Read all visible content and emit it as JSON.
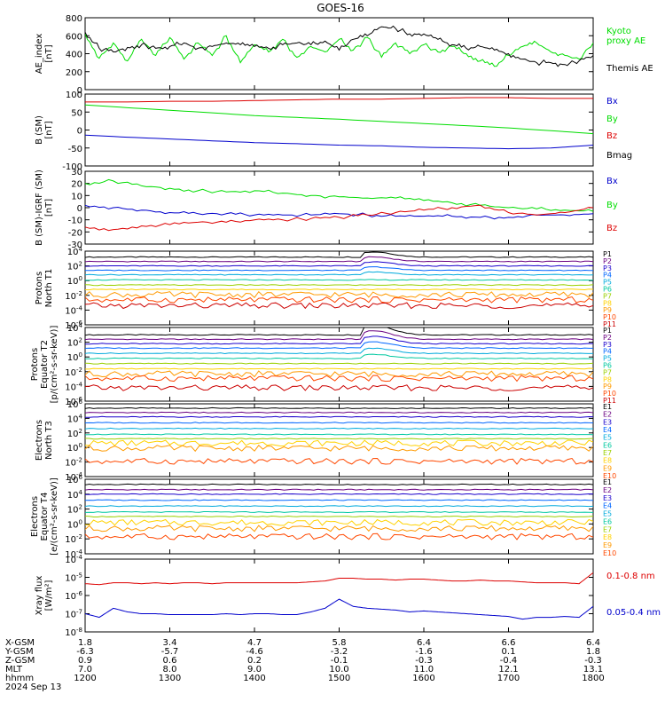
{
  "title": "GOES-16",
  "colors": {
    "black": "#000000",
    "green": "#00dd00",
    "red": "#dd0000",
    "blue": "#0000cc",
    "P": [
      "#000000",
      "#6a0080",
      "#1a00cc",
      "#0066ff",
      "#00aadd",
      "#00c8a0",
      "#9ad000",
      "#ffd200",
      "#ff9a00",
      "#ff4800",
      "#cc0000"
    ]
  },
  "xaxis": {
    "times": [
      "1200",
      "1300",
      "1400",
      "1500",
      "1600",
      "1700",
      "1800"
    ],
    "rows": [
      {
        "label": "X-GSM",
        "values": [
          "1.8",
          "3.4",
          "4.7",
          "5.8",
          "6.4",
          "6.6",
          "6.4"
        ]
      },
      {
        "label": "Y-GSM",
        "values": [
          "-6.3",
          "-5.7",
          "-4.6",
          "-3.2",
          "-1.6",
          "0.1",
          "1.8"
        ]
      },
      {
        "label": "Z-GSM",
        "values": [
          "0.9",
          "0.6",
          "0.2",
          "-0.1",
          "-0.3",
          "-0.4",
          "-0.3"
        ]
      },
      {
        "label": "MLT",
        "values": [
          "7.0",
          "8.0",
          "9.0",
          "10.0",
          "11.0",
          "12.1",
          "13.1"
        ]
      },
      {
        "label": "hhmm",
        "values": [
          "1200",
          "1300",
          "1400",
          "1500",
          "1600",
          "1700",
          "1800"
        ]
      }
    ],
    "date": "2024 Sep 13"
  },
  "chart_data": [
    {
      "type": "line",
      "id": "ae",
      "ylabel": [
        "AE_index",
        "[nT]"
      ],
      "ylim": [
        0,
        800
      ],
      "yticks": [
        "0",
        "200",
        "400",
        "600",
        "800"
      ],
      "series": [
        {
          "name": "Kyoto proxy AE",
          "label_lines": [
            "Kyoto",
            "proxy AE"
          ],
          "color": "green",
          "x": [
            1200,
            1210,
            1220,
            1230,
            1240,
            1250,
            1300,
            1310,
            1320,
            1330,
            1340,
            1350,
            1400,
            1410,
            1420,
            1430,
            1440,
            1450,
            1500,
            1510,
            1520,
            1530,
            1540,
            1550,
            1600,
            1610,
            1620,
            1630,
            1640,
            1650,
            1700,
            1710,
            1720,
            1730,
            1740,
            1750,
            1800
          ],
          "y": [
            620,
            350,
            520,
            320,
            560,
            380,
            580,
            340,
            520,
            380,
            600,
            300,
            500,
            420,
            560,
            360,
            480,
            420,
            560,
            440,
            580,
            360,
            520,
            400,
            500,
            420,
            480,
            400,
            320,
            260,
            380,
            480,
            520,
            420,
            380,
            340,
            520
          ]
        },
        {
          "name": "Themis AE",
          "label_lines": [
            "Themis AE"
          ],
          "color": "black",
          "x": [
            1200,
            1210,
            1220,
            1230,
            1240,
            1250,
            1300,
            1310,
            1320,
            1330,
            1340,
            1350,
            1400,
            1410,
            1420,
            1430,
            1440,
            1450,
            1500,
            1510,
            1520,
            1530,
            1540,
            1550,
            1600,
            1610,
            1620,
            1630,
            1640,
            1650,
            1700,
            1710,
            1720,
            1730,
            1740,
            1750,
            1800
          ],
          "y": [
            640,
            460,
            420,
            470,
            500,
            460,
            480,
            520,
            460,
            480,
            520,
            500,
            480,
            460,
            500,
            520,
            500,
            540,
            440,
            560,
            600,
            700,
            680,
            620,
            620,
            560,
            500,
            460,
            480,
            440,
            400,
            340,
            300,
            300,
            280,
            320,
            380
          ]
        }
      ]
    },
    {
      "type": "line",
      "id": "bsm",
      "ylabel": [
        "B (SM)",
        "[nT]"
      ],
      "ylim": [
        -100,
        100
      ],
      "yticks": [
        "-100",
        "-50",
        "0",
        "50",
        "100"
      ],
      "series": [
        {
          "name": "Bx",
          "color": "blue",
          "x": [
            1200,
            1230,
            1300,
            1330,
            1400,
            1430,
            1500,
            1530,
            1600,
            1630,
            1700,
            1730,
            1800
          ],
          "y": [
            -14,
            -20,
            -25,
            -30,
            -35,
            -38,
            -42,
            -44,
            -48,
            -50,
            -52,
            -50,
            -42
          ]
        },
        {
          "name": "By",
          "color": "green",
          "x": [
            1200,
            1230,
            1300,
            1330,
            1400,
            1430,
            1500,
            1530,
            1600,
            1630,
            1700,
            1730,
            1800
          ],
          "y": [
            70,
            62,
            55,
            48,
            40,
            35,
            30,
            24,
            18,
            12,
            6,
            -2,
            -10
          ]
        },
        {
          "name": "Bz",
          "color": "red",
          "x": [
            1200,
            1230,
            1300,
            1330,
            1400,
            1430,
            1500,
            1530,
            1600,
            1630,
            1700,
            1730,
            1800
          ],
          "y": [
            78,
            78,
            80,
            80,
            82,
            84,
            86,
            86,
            88,
            90,
            90,
            88,
            88
          ]
        },
        {
          "name": "Bmag",
          "color": "black",
          "x": [
            1200,
            1230,
            1300,
            1330,
            1400,
            1430,
            1500,
            1530,
            1600,
            1630,
            1700,
            1730,
            1800
          ],
          "y": [
            105,
            104,
            104,
            104,
            104,
            104,
            104,
            104,
            104,
            106,
            110,
            106,
            104
          ]
        }
      ]
    },
    {
      "type": "line",
      "id": "bigrf",
      "ylabel": [
        "B (SM)-IGRF (SM)",
        "[nT]"
      ],
      "ylim": [
        -30,
        30
      ],
      "yticks": [
        "-30",
        "-20",
        "-10",
        "0",
        "10",
        "20",
        "30"
      ],
      "series": [
        {
          "name": "Bx",
          "color": "blue",
          "x": [
            1200,
            1220,
            1240,
            1300,
            1320,
            1340,
            1400,
            1420,
            1440,
            1500,
            1520,
            1540,
            1600,
            1620,
            1640,
            1700,
            1720,
            1740,
            1800
          ],
          "y": [
            2,
            0,
            -2,
            -4,
            -5,
            -5,
            -6,
            -6,
            -6,
            -5,
            -6,
            -7,
            -7,
            -7,
            -8,
            -8,
            -6,
            -6,
            -5
          ]
        },
        {
          "name": "By",
          "color": "green",
          "x": [
            1200,
            1220,
            1240,
            1300,
            1320,
            1340,
            1400,
            1420,
            1440,
            1500,
            1520,
            1540,
            1600,
            1620,
            1640,
            1700,
            1720,
            1740,
            1800
          ],
          "y": [
            20,
            22,
            18,
            16,
            14,
            13,
            14,
            12,
            10,
            9,
            8,
            8,
            6,
            4,
            2,
            0,
            -1,
            -2,
            -3
          ]
        },
        {
          "name": "Bz",
          "color": "red",
          "x": [
            1200,
            1220,
            1240,
            1300,
            1320,
            1340,
            1400,
            1420,
            1440,
            1500,
            1520,
            1540,
            1600,
            1620,
            1640,
            1700,
            1720,
            1740,
            1800
          ],
          "y": [
            -16,
            -18,
            -15,
            -14,
            -12,
            -12,
            -10,
            -10,
            -9,
            -8,
            -6,
            -4,
            -2,
            0,
            2,
            -4,
            -6,
            -4,
            0
          ]
        }
      ]
    },
    {
      "type": "line",
      "id": "pnorth",
      "log": true,
      "ylabel": [
        "Protons",
        "North T1"
      ],
      "ylim": [
        -6,
        4
      ],
      "yticks": [
        "10^4",
        "10^2",
        "10^0",
        "10^-2",
        "10^-4",
        "10^-6"
      ],
      "channels": [
        "P1",
        "P2",
        "P3",
        "P4",
        "P5",
        "P6",
        "P7",
        "P8",
        "P9",
        "P10",
        "P11"
      ],
      "levels": [
        3.2,
        2.6,
        2.0,
        1.4,
        0.8,
        0.1,
        -0.6,
        -1.2,
        -1.9,
        -2.6,
        -3.4
      ],
      "bump_series": [
        0,
        1,
        2,
        3,
        4
      ],
      "bump_x": 1525,
      "bump_size": 0.7
    },
    {
      "type": "line",
      "id": "pequator",
      "log": true,
      "ylabel": [
        "Protons",
        "Equator T2",
        "[p/(cm²-s-sr-keV)]"
      ],
      "ylim": [
        -6,
        4
      ],
      "yticks": [
        "10^4",
        "10^2",
        "10^0",
        "10^-2",
        "10^-4",
        "10^-6"
      ],
      "channels": [
        "P1",
        "P2",
        "P3",
        "P4",
        "P5",
        "P6",
        "P7",
        "P8",
        "P9",
        "P10",
        "P11"
      ],
      "levels": [
        3.0,
        2.4,
        1.8,
        1.2,
        0.5,
        -0.2,
        -0.9,
        -1.6,
        -2.3,
        -2.9,
        -4.2
      ],
      "bump_series": [
        0,
        1,
        2,
        3,
        4,
        5
      ],
      "bump_x": 1525,
      "bump_size": 1.3
    },
    {
      "type": "line",
      "id": "enorth",
      "log": true,
      "ylabel": [
        "Electrons",
        "North T3"
      ],
      "ylim": [
        -4,
        6
      ],
      "yticks": [
        "10^6",
        "10^4",
        "10^2",
        "10^0",
        "10^-2",
        "10^-4"
      ],
      "channels": [
        "E1",
        "E2",
        "E3",
        "E4",
        "E5",
        "E6",
        "E7",
        "E8",
        "E9",
        "E10"
      ],
      "levels": [
        5.4,
        4.8,
        4.2,
        3.4,
        2.6,
        1.8,
        1.2,
        0.6,
        -0.1,
        -1.9
      ],
      "bump_series": [],
      "bump_x": 1500,
      "bump_size": 0
    },
    {
      "type": "line",
      "id": "eequator",
      "log": true,
      "ylabel": [
        "Electrons",
        "Equator T4",
        "[e/(cm²-s-sr-keV)]"
      ],
      "ylim": [
        -4,
        6
      ],
      "yticks": [
        "10^6",
        "10^4",
        "10^2",
        "10^0",
        "10^-2",
        "10^-4"
      ],
      "channels": [
        "E1",
        "E2",
        "E3",
        "E4",
        "E5",
        "E6",
        "E7",
        "E8",
        "E9",
        "E10"
      ],
      "levels": [
        5.3,
        4.6,
        4.0,
        3.2,
        2.4,
        1.6,
        1.0,
        0.2,
        -0.6,
        -1.7
      ],
      "bump_series": [],
      "bump_x": 1500,
      "bump_size": 0
    },
    {
      "type": "line",
      "id": "xray",
      "log": true,
      "ylabel": [
        "Xray flux",
        "[W/m²]"
      ],
      "ylim": [
        -8,
        -4
      ],
      "yticks": [
        "10^-4",
        "10^-5",
        "10^-6",
        "10^-7",
        "10^-8"
      ],
      "series": [
        {
          "name": "0.1-0.8 nm",
          "color": "red",
          "x": [
            1200,
            1210,
            1220,
            1230,
            1240,
            1250,
            1300,
            1310,
            1320,
            1330,
            1340,
            1350,
            1400,
            1410,
            1420,
            1430,
            1440,
            1450,
            1500,
            1510,
            1520,
            1530,
            1540,
            1550,
            1600,
            1610,
            1620,
            1630,
            1640,
            1650,
            1700,
            1710,
            1720,
            1730,
            1740,
            1750,
            1800
          ],
          "y": [
            -5.35,
            -5.4,
            -5.3,
            -5.3,
            -5.35,
            -5.3,
            -5.35,
            -5.3,
            -5.3,
            -5.35,
            -5.3,
            -5.3,
            -5.3,
            -5.3,
            -5.3,
            -5.3,
            -5.25,
            -5.2,
            -5.05,
            -5.05,
            -5.1,
            -5.1,
            -5.15,
            -5.1,
            -5.1,
            -5.15,
            -5.2,
            -5.2,
            -5.15,
            -5.2,
            -5.2,
            -5.25,
            -5.3,
            -5.3,
            -5.3,
            -5.35,
            -4.75
          ]
        },
        {
          "name": "0.05-0.4 nm",
          "color": "blue",
          "x": [
            1200,
            1210,
            1220,
            1230,
            1240,
            1250,
            1300,
            1310,
            1320,
            1330,
            1340,
            1350,
            1400,
            1410,
            1420,
            1430,
            1440,
            1450,
            1500,
            1510,
            1520,
            1530,
            1540,
            1550,
            1600,
            1610,
            1620,
            1630,
            1640,
            1650,
            1700,
            1710,
            1720,
            1730,
            1740,
            1750,
            1800
          ],
          "y": [
            -7.0,
            -7.2,
            -6.7,
            -6.9,
            -7.0,
            -7.0,
            -7.05,
            -7.05,
            -7.05,
            -7.05,
            -7.0,
            -7.05,
            -7.0,
            -7.0,
            -7.05,
            -7.05,
            -6.9,
            -6.7,
            -6.2,
            -6.6,
            -6.7,
            -6.75,
            -6.8,
            -6.9,
            -6.85,
            -6.9,
            -6.95,
            -7.0,
            -7.05,
            -7.1,
            -7.15,
            -7.3,
            -7.2,
            -7.2,
            -7.15,
            -7.2,
            -6.6
          ]
        }
      ]
    }
  ]
}
